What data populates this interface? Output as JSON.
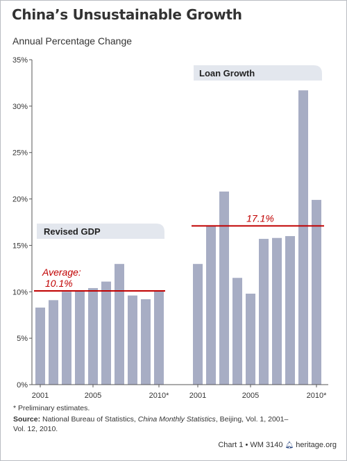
{
  "header": {
    "title": "China’s Unsustainable Growth",
    "subtitle": "Annual Percentage Change"
  },
  "chart_data": {
    "type": "bar",
    "title": "China’s Unsustainable Growth",
    "ylabel": "Annual Percentage Change",
    "ylim": [
      0,
      35
    ],
    "yticks": [
      "0%",
      "5%",
      "10%",
      "15%",
      "20%",
      "25%",
      "30%",
      "35%"
    ],
    "grid": false,
    "bar_color": "#a7adc4",
    "reference_line_color": "#c00000",
    "annotation_color": "#c00000",
    "groups": [
      {
        "name": "Revised GDP",
        "categories": [
          "2001",
          "2002",
          "2003",
          "2004",
          "2005",
          "2006",
          "2007",
          "2008",
          "2009",
          "2010*"
        ],
        "tick_labels": [
          "2001",
          "2005",
          "2010*"
        ],
        "values": [
          8.3,
          9.1,
          10.0,
          10.1,
          10.4,
          11.1,
          13.0,
          9.6,
          9.2,
          10.1
        ],
        "average": 10.1,
        "average_label_line1": "Average:",
        "average_label_line2": "10.1%"
      },
      {
        "name": "Loan Growth",
        "categories": [
          "2001",
          "2002",
          "2003",
          "2004",
          "2005",
          "2006",
          "2007",
          "2008",
          "2009",
          "2010*"
        ],
        "tick_labels": [
          "2001",
          "2005",
          "2010*"
        ],
        "values": [
          13.0,
          17.1,
          20.8,
          11.5,
          9.8,
          15.7,
          15.8,
          16.0,
          31.7,
          19.9
        ],
        "average": 17.1,
        "average_label": "17.1%"
      }
    ]
  },
  "footer": {
    "footnote": "* Preliminary estimates.",
    "source_label": "Source:",
    "source_text_1": "National Bureau of Statistics,",
    "source_italic": "China Monthly Statistics",
    "source_text_2": ", Beijing, Vol. 1, 2001–",
    "source_text_3": "Vol. 12, 2010.",
    "chart_id": "Chart 1 • WM 3140",
    "bell_icon": "heritage-bell-icon",
    "site": "heritage.org"
  }
}
